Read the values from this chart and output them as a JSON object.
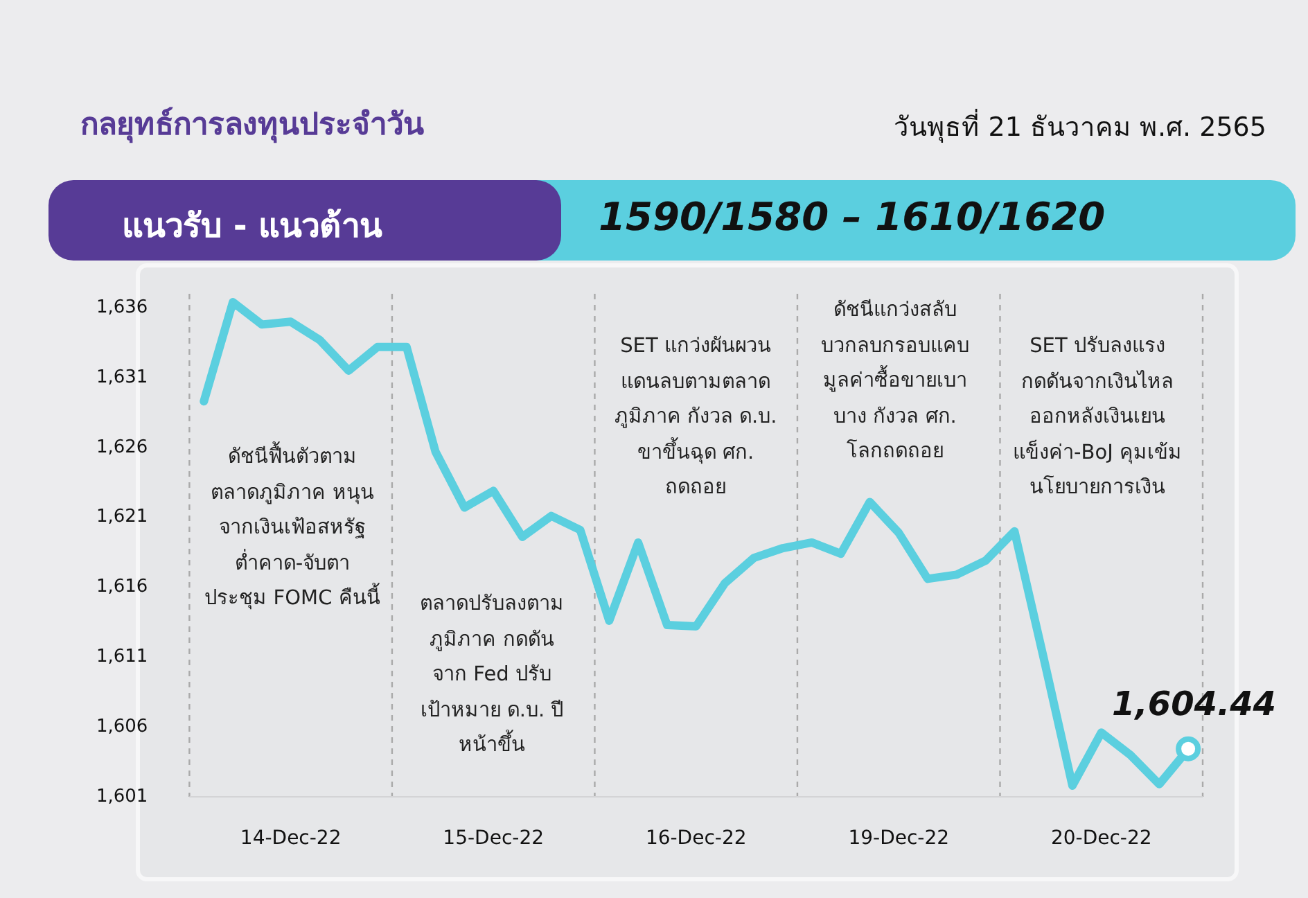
{
  "chart_data": {
    "type": "line",
    "title": "กลยุทธ์การลงทุนประจำวัน",
    "subtitle": "วันพุธที่ 21 ธันวาคม พ.ศ. 2565",
    "categories": [
      null,
      null,
      null,
      "14-Dec-22",
      null,
      null,
      null,
      null,
      null,
      null,
      "15-Dec-22",
      null,
      null,
      null,
      null,
      null,
      null,
      "16-Dec-22",
      null,
      null,
      null,
      null,
      null,
      null,
      "19-Dec-22",
      null,
      null,
      null,
      null,
      null,
      null,
      "20-Dec-22",
      null,
      null,
      null
    ],
    "series": [
      {
        "color": "#5bcfdf",
        "values": [
          1629.3,
          1636.4,
          1634.8,
          1635.0,
          1633.7,
          1631.5,
          1633.2,
          1633.2,
          1625.7,
          1621.7,
          1622.9,
          1619.6,
          1621.1,
          1620.1,
          1613.6,
          1619.2,
          1613.3,
          1613.2,
          1616.3,
          1618.1,
          1618.8,
          1619.2,
          1618.4,
          1622.1,
          1619.9,
          1616.6,
          1616.9,
          1617.9,
          1620.0,
          1611.0,
          1601.8,
          1605.6,
          1604.0,
          1601.9,
          1604.4
        ]
      }
    ],
    "ylim": [
      1601,
      1637
    ],
    "yticks": [
      {
        "value": 1601,
        "label": "1,601"
      },
      {
        "value": 1606,
        "label": "1,606"
      },
      {
        "value": 1611,
        "label": "1,611"
      },
      {
        "value": 1616,
        "label": "1,616"
      },
      {
        "value": 1621,
        "label": "1,621"
      },
      {
        "value": 1626,
        "label": "1,626"
      },
      {
        "value": 1631,
        "label": "1,631"
      },
      {
        "value": 1636,
        "label": "1,636"
      }
    ],
    "grid": "x",
    "legend": false,
    "marker": "none",
    "line_style": "solid",
    "annotations": [
      "แนวรับ - แนวต้าน",
      "1590/1580 – 1610/1620",
      "ดัชนีฟื้นตัวตาม\nตลาดภูมิภาค หนุน\nจากเงินเฟ้อสหรัฐ\nต่ำคาด-จับตา\nประชุม FOMC คืนนี้",
      "ตลาดปรับลงตาม\nภูมิภาค กดดัน\nจาก Fed ปรับ\nเป้าหมาย ด.บ. ปี\nหน้าขึ้น",
      "SET แกว่งผันผวน\nแดนลบตามตลาด\nภูมิภาค กังวล ด.บ.\nขาขึ้นฉุด ศก.\nถดถอย",
      "ดัชนีแกว่งสลับ\nบวกลบกรอบแคบ\nมูลค่าซื้อขายเบา\nบาง กังวล ศก.\nโลกถดถอย",
      "SET ปรับลงแรง\nกดดันจากเงินไหล\nออกหลังเงินเยน\nแข็งค่า-BoJ คุมเข้ม\nนโยบายการเงิน",
      {
        "text": "1,604.44",
        "y": 1604.44
      }
    ]
  }
}
